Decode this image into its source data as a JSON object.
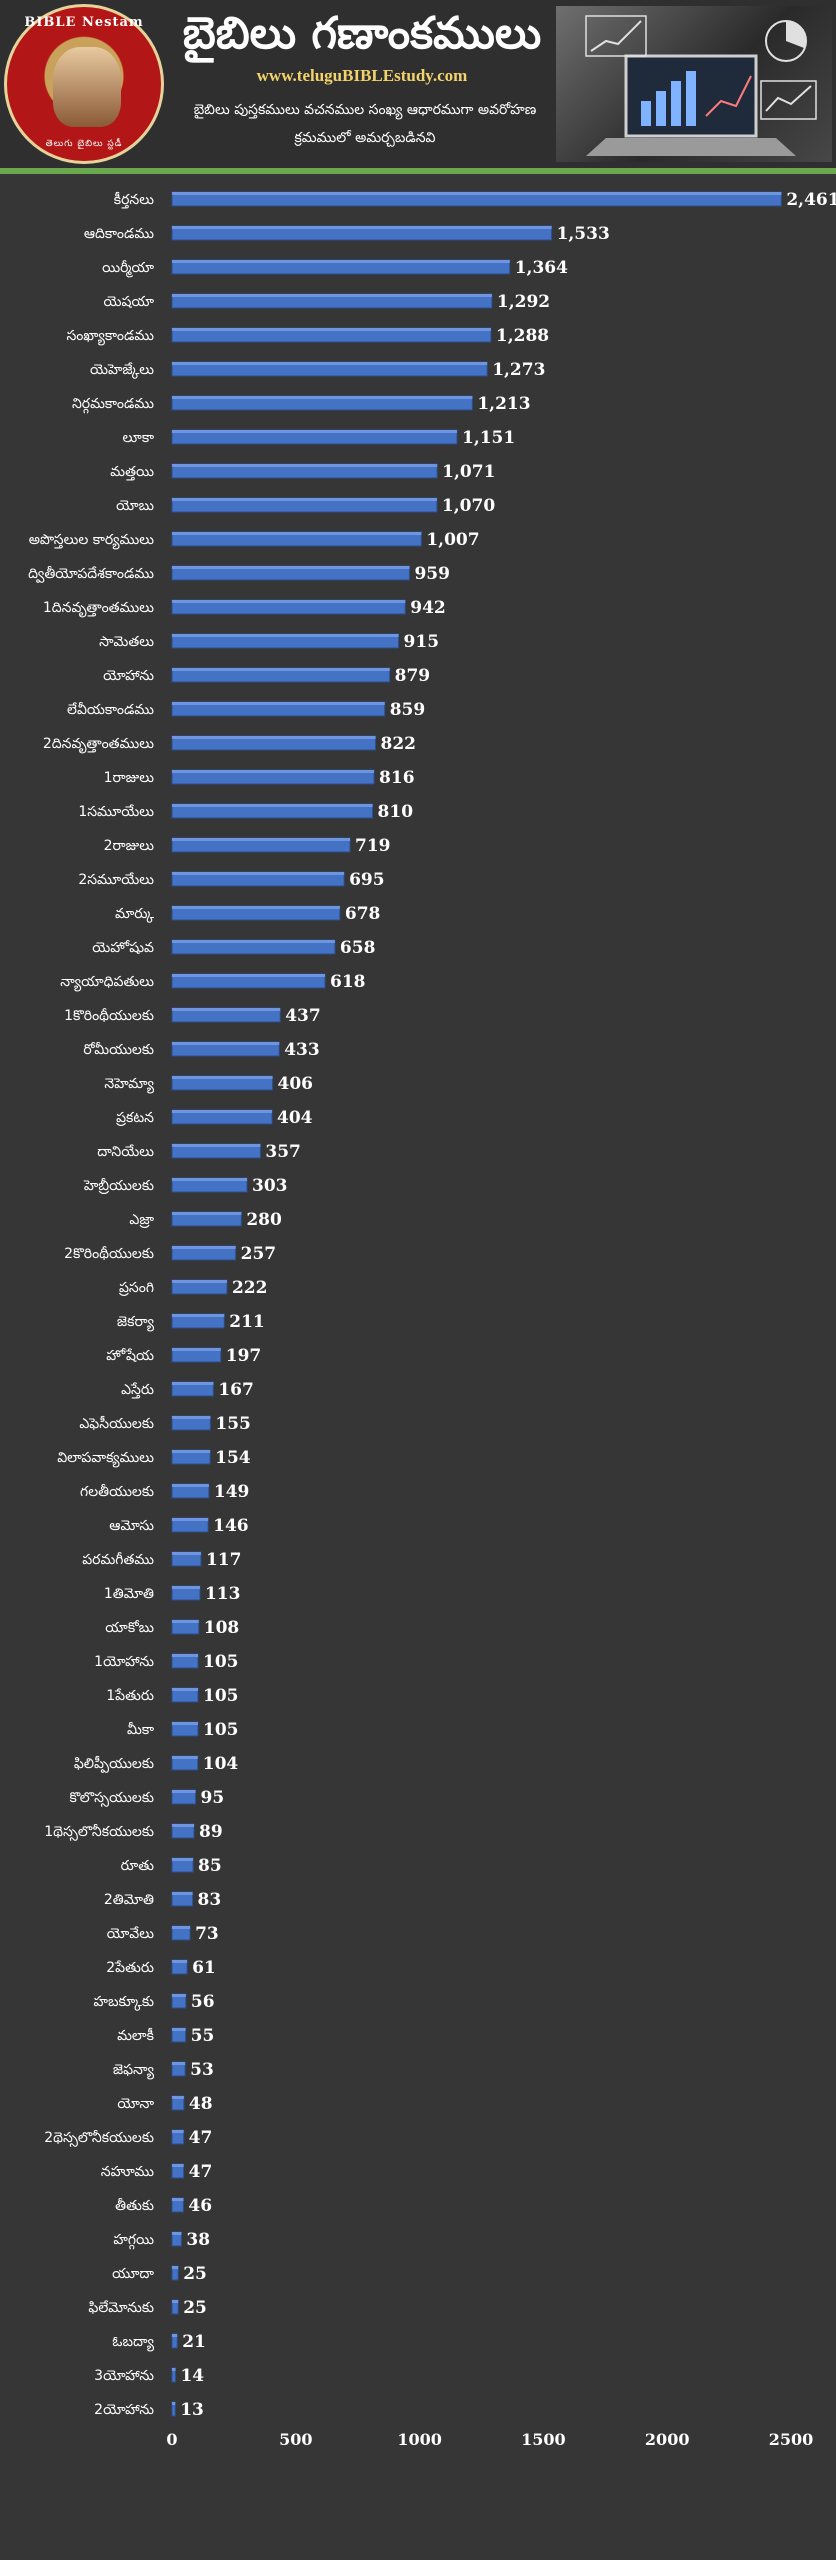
{
  "header": {
    "title": "బైబిలు గణాంకములు",
    "website": "www.teluguBIBLEstudy.com",
    "subtitle_line1": "బైబిలు పుస్తకములు వచనముల సంఖ్య ఆధారముగా అవరోహణ",
    "subtitle_line2": "క్రమములో అమర్చబడినవి",
    "logo_text": "BIBLE Nestam",
    "logo_subtext": "తెలుగు బైబిలు స్టడీ"
  },
  "colors": {
    "background": "#363636",
    "bar": "#4472c4",
    "bar_top": "#6f95de",
    "text": "#ffffff",
    "accent_line": "#6aa84f"
  },
  "chart_data": {
    "type": "bar",
    "orientation": "horizontal",
    "categories": [
      "కీర్తనలు",
      "ఆదికాండము",
      "యిర్మీయా",
      "యెషయా",
      "సంఖ్యాకాండము",
      "యెహెజ్కేలు",
      "నిర్గమకాండము",
      "లూకా",
      "మత్తయి",
      "యోబు",
      "అపొస్తలుల కార్యములు",
      "ద్వితీయోపదేశకాండము",
      "1దినవృత్తాంతములు",
      "సామెతలు",
      "యోహాను",
      "లేవీయకాండము",
      "2దినవృత్తాంతములు",
      "1రాజులు",
      "1సమూయేలు",
      "2రాజులు",
      "2సమూయేలు",
      "మార్కు",
      "యెహోషువ",
      "న్యాయాధిపతులు",
      "1కొరింథీయులకు",
      "రోమీయులకు",
      "నెహెమ్యా",
      "ప్రకటన",
      "దానియేలు",
      "హెబ్రీయులకు",
      "ఎజ్రా",
      "2కొరింథీయులకు",
      "ప్రసంగి",
      "జెకర్యా",
      "హోషేయ",
      "ఎస్తేరు",
      "ఎఫెసీయులకు",
      "విలాపవాక్యములు",
      "గలతీయులకు",
      "ఆమోసు",
      "పరమగీతము",
      "1తిమోతి",
      "యాకోబు",
      "1యోహాను",
      "1పేతురు",
      "మీకా",
      "ఫిలిప్పీయులకు",
      "కొలొస్సయులకు",
      "1థెస్సలొనీకయులకు",
      "రూతు",
      "2తిమోతి",
      "యోవేలు",
      "2పేతురు",
      "హబక్కూకు",
      "మలాకీ",
      "జెఫన్యా",
      "యోనా",
      "2థెస్సలొనీకయులకు",
      "నహూము",
      "తీతుకు",
      "హగ్గయి",
      "యూదా",
      "ఫిలేమోనుకు",
      "ఓబద్యా",
      "3యోహాను",
      "2యోహాను"
    ],
    "values": [
      2461,
      1533,
      1364,
      1292,
      1288,
      1273,
      1213,
      1151,
      1071,
      1070,
      1007,
      959,
      942,
      915,
      879,
      859,
      822,
      816,
      810,
      719,
      695,
      678,
      658,
      618,
      437,
      433,
      406,
      404,
      357,
      303,
      280,
      257,
      222,
      211,
      197,
      167,
      155,
      154,
      149,
      146,
      117,
      113,
      108,
      105,
      105,
      105,
      104,
      95,
      89,
      85,
      83,
      73,
      61,
      56,
      55,
      53,
      48,
      47,
      47,
      46,
      38,
      25,
      25,
      21,
      14,
      13
    ],
    "value_labels": [
      "2,461",
      "1,533",
      "1,364",
      "1,292",
      "1,288",
      "1,273",
      "1,213",
      "1,151",
      "1,071",
      "1,070",
      "1,007",
      "959",
      "942",
      "915",
      "879",
      "859",
      "822",
      "816",
      "810",
      "719",
      "695",
      "678",
      "658",
      "618",
      "437",
      "433",
      "406",
      "404",
      "357",
      "303",
      "280",
      "257",
      "222",
      "211",
      "197",
      "167",
      "155",
      "154",
      "149",
      "146",
      "117",
      "113",
      "108",
      "105",
      "105",
      "105",
      "104",
      "95",
      "89",
      "85",
      "83",
      "73",
      "61",
      "56",
      "55",
      "53",
      "48",
      "47",
      "47",
      "46",
      "38",
      "25",
      "25",
      "21",
      "14",
      "13"
    ],
    "x_ticks": [
      0,
      500,
      1000,
      1500,
      2000,
      2500
    ],
    "xlim": [
      0,
      2600
    ],
    "grid": false,
    "legend": "none"
  }
}
